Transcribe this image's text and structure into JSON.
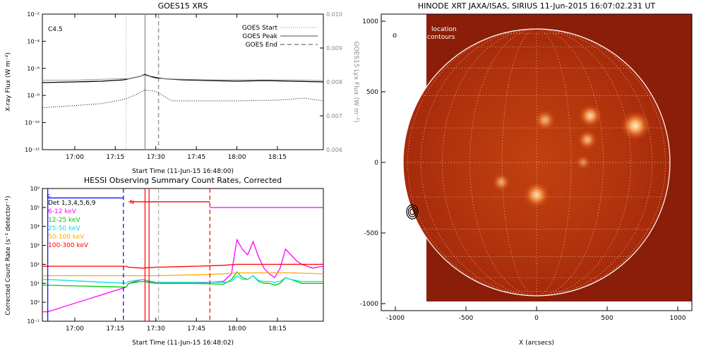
{
  "colors": {
    "text": "#000000",
    "grid": "#ffffff",
    "limb": "#ffffff",
    "disk_bg": "#8a1e08"
  },
  "chart_data": [
    {
      "id": "goes",
      "type": "line",
      "title": "GOES15 XRS",
      "xlabel": "Start Time (11-Jun-15 16:48:00)",
      "ylabel_left": "X-ray Flux (W m⁻²)",
      "ylabel_right": "GOES15 Lyx Flux (W m⁻²)",
      "x_ticks": [
        "17:00",
        "17:15",
        "17:30",
        "17:45",
        "18:00",
        "18:15"
      ],
      "x_tick_minutes": [
        0,
        15,
        30,
        45,
        60,
        75
      ],
      "x_range_minutes": [
        -12,
        92
      ],
      "y_scale": "log",
      "y_ticks_exp": [
        -12,
        -10,
        -8,
        -6,
        -4,
        -2
      ],
      "y_tick_labels": [
        "10⁻¹²",
        "10⁻¹⁰",
        "10⁻⁸",
        "10⁻⁶",
        "10⁻⁴",
        "10⁻²"
      ],
      "y_right_ticks": [
        "0.006",
        "0.007",
        "0.008",
        "0.009",
        "0.010"
      ],
      "y_right_range": [
        0.006,
        0.01
      ],
      "annotation": "C4.5",
      "legend": {
        "position": "top-right",
        "entries": [
          "GOES Start",
          "GOES Peak",
          "GOES End"
        ]
      },
      "markers_minutes": {
        "start": 19,
        "peak": 26,
        "end": 31
      },
      "series": [
        {
          "color": "#000000",
          "style": "solid",
          "x": [
            -12,
            0,
            10,
            18,
            24,
            26,
            28,
            32,
            40,
            50,
            60,
            70,
            80,
            92
          ],
          "log_y": [
            -7.05,
            -7.0,
            -6.95,
            -6.85,
            -6.6,
            -6.45,
            -6.6,
            -6.75,
            -6.85,
            -6.9,
            -6.95,
            -6.9,
            -6.95,
            -7.0
          ]
        },
        {
          "color": "#999999",
          "style": "solid",
          "x": [
            -12,
            0,
            10,
            20,
            26,
            30,
            40,
            50,
            60,
            70,
            80,
            92
          ],
          "right_y": [
            0.00805,
            0.00805,
            0.00808,
            0.0081,
            0.0082,
            0.0081,
            0.00808,
            0.00806,
            0.00806,
            0.00806,
            0.00806,
            0.00804
          ]
        },
        {
          "color": "#000000",
          "style": "dotted",
          "x": [
            -12,
            0,
            10,
            18,
            22,
            26,
            30,
            36,
            45,
            60,
            75,
            85,
            92
          ],
          "log_y": [
            -8.9,
            -8.75,
            -8.6,
            -8.3,
            -8.0,
            -7.6,
            -7.7,
            -8.4,
            -8.4,
            -8.4,
            -8.35,
            -8.2,
            -8.4
          ]
        }
      ]
    },
    {
      "id": "hessi",
      "type": "line",
      "title": "HESSI Observing Summary Count Rates, Corrected",
      "xlabel": "Start Time (11-Jun-15 16:48:02)",
      "ylabel": "Corrected Count Rate (s⁻¹ detector⁻¹)",
      "x_ticks": [
        "17:00",
        "17:15",
        "17:30",
        "17:45",
        "18:00",
        "18:15"
      ],
      "x_tick_minutes": [
        0,
        15,
        30,
        45,
        60,
        75
      ],
      "x_range_minutes": [
        -12,
        92
      ],
      "y_scale": "log",
      "y_ticks_exp": [
        -1,
        0,
        1,
        2,
        3,
        4,
        5,
        6
      ],
      "y_tick_labels": [
        "10⁻¹",
        "10⁰",
        "10¹",
        "10²",
        "10³",
        "10⁴",
        "10⁵",
        "10⁶"
      ],
      "legend": {
        "position": "top-left",
        "entries": [
          {
            "label": "Det 1,3,4,5,6,9",
            "color": "#000000"
          },
          {
            "label": "6-12 keV",
            "color": "#ff00ff"
          },
          {
            "label": "12-25 keV",
            "color": "#00cc00"
          },
          {
            "label": "25-50 keV",
            "color": "#00e5e5"
          },
          {
            "label": "50-100 keV",
            "color": "#ffaa00"
          },
          {
            "label": "100-300 keV",
            "color": "#ff0000"
          }
        ]
      },
      "flag_labels": {
        "s": "S",
        "n": "N"
      },
      "vlines_minutes": [
        {
          "x": -10,
          "color": "#0000ff",
          "style": "solid"
        },
        {
          "x": 18,
          "color": "#0000ff",
          "style": "dashed"
        },
        {
          "x": 26,
          "color": "#ff0000",
          "style": "solid"
        },
        {
          "x": 27.5,
          "color": "#ff0000",
          "style": "solid"
        },
        {
          "x": 31,
          "color": "#aaaaaa",
          "style": "dashed"
        },
        {
          "x": 50,
          "color": "#ff0000",
          "style": "dashed"
        }
      ],
      "series": [
        {
          "name": "blue-flag",
          "color": "#0000ff",
          "x": [
            -10,
            18
          ],
          "log_y": [
            5.5,
            5.5
          ]
        },
        {
          "name": "red-flag",
          "color": "#ff0000",
          "x": [
            20,
            50
          ],
          "log_y": [
            5.3,
            5.3
          ]
        },
        {
          "name": "magenta-flag",
          "color": "#ff00ff",
          "x": [
            50,
            92
          ],
          "log_y": [
            5.0,
            5.0
          ]
        },
        {
          "name": "6-12 keV",
          "color": "#ff00ff",
          "x": [
            -12,
            -10,
            19,
            20,
            25,
            30,
            45,
            55,
            58,
            60,
            62,
            64,
            66,
            68,
            70,
            72,
            74,
            76,
            78,
            80,
            82,
            84,
            86,
            88,
            92
          ],
          "log_y": [
            -0.5,
            -0.5,
            0.8,
            1.0,
            1.2,
            1.0,
            1.0,
            1.1,
            1.5,
            3.3,
            2.8,
            2.5,
            3.2,
            2.4,
            1.8,
            1.5,
            1.3,
            1.8,
            2.8,
            2.5,
            2.2,
            2.0,
            1.9,
            1.8,
            1.9
          ]
        },
        {
          "name": "12-25 keV",
          "color": "#00cc00",
          "x": [
            -12,
            -10,
            19,
            20,
            25,
            30,
            45,
            55,
            58,
            60,
            62,
            64,
            66,
            68,
            70,
            72,
            74,
            76,
            78,
            80,
            82,
            84,
            86,
            88,
            92
          ],
          "log_y": [
            0.9,
            0.9,
            0.8,
            1.0,
            1.1,
            1.0,
            1.0,
            0.95,
            1.2,
            1.6,
            1.3,
            1.2,
            1.4,
            1.1,
            1.0,
            1.0,
            0.9,
            1.0,
            1.3,
            1.2,
            1.1,
            1.0,
            1.0,
            1.0,
            1.0
          ]
        },
        {
          "name": "25-50 keV",
          "color": "#00e5e5",
          "x": [
            -12,
            -10,
            19,
            20,
            25,
            30,
            45,
            55,
            58,
            60,
            62,
            64,
            66,
            68,
            70,
            72,
            74,
            76,
            78,
            80,
            82,
            84,
            86,
            88,
            92
          ],
          "log_y": [
            1.2,
            1.2,
            1.0,
            1.1,
            1.2,
            1.05,
            1.05,
            1.05,
            1.1,
            1.4,
            1.2,
            1.2,
            1.4,
            1.15,
            1.1,
            1.1,
            1.05,
            1.1,
            1.3,
            1.2,
            1.15,
            1.1,
            1.1,
            1.1,
            1.1
          ]
        },
        {
          "name": "50-100 keV",
          "color": "#ffaa00",
          "x": [
            -12,
            -10,
            19,
            20,
            25,
            30,
            45,
            55,
            60,
            70,
            80,
            92
          ],
          "log_y": [
            1.4,
            1.4,
            1.4,
            1.4,
            1.4,
            1.4,
            1.45,
            1.5,
            1.55,
            1.55,
            1.55,
            1.5
          ]
        },
        {
          "name": "100-300 keV",
          "color": "#ff0000",
          "x": [
            -12,
            -10,
            19,
            20,
            25,
            30,
            45,
            55,
            60,
            70,
            80,
            92
          ],
          "log_y": [
            1.9,
            1.9,
            1.9,
            1.85,
            1.8,
            1.85,
            1.9,
            1.95,
            2.0,
            2.0,
            2.0,
            2.0
          ]
        }
      ]
    },
    {
      "id": "xrt",
      "type": "heatmap",
      "title": "HINODE XRT JAXA/ISAS, SIRIUS 11-Jun-2015 16:07:02.231 UT",
      "xlabel": "X (arcsecs)",
      "x_ticks": [
        -1000,
        -500,
        0,
        500,
        1000
      ],
      "y_ticks": [
        -1000,
        -500,
        0,
        500,
        1000
      ],
      "x_range": [
        -1100,
        1100
      ],
      "y_range": [
        -1050,
        1050
      ],
      "image_extent": {
        "x": [
          -780,
          1100
        ],
        "y": [
          -985,
          1050
        ]
      },
      "solar_radius": 945,
      "legend_text": [
        "location",
        "contours"
      ],
      "legend_marker": "o",
      "contour_center": [
        -880,
        -350
      ],
      "bright_regions": [
        {
          "x": 700,
          "y": 260,
          "r": 90,
          "intensity": 1.0
        },
        {
          "x": 380,
          "y": 330,
          "r": 70,
          "intensity": 0.9
        },
        {
          "x": 360,
          "y": 160,
          "r": 60,
          "intensity": 0.75
        },
        {
          "x": 60,
          "y": 300,
          "r": 65,
          "intensity": 0.7
        },
        {
          "x": 0,
          "y": -230,
          "r": 80,
          "intensity": 0.9
        },
        {
          "x": -250,
          "y": -140,
          "r": 55,
          "intensity": 0.65
        },
        {
          "x": 330,
          "y": 0,
          "r": 45,
          "intensity": 0.5
        }
      ]
    }
  ]
}
